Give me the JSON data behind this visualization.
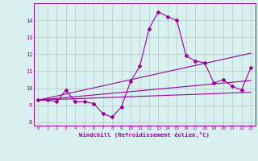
{
  "xlabel": "Windchill (Refroidissement éolien,°C)",
  "ylabel": "",
  "x_hours": [
    0,
    1,
    2,
    3,
    4,
    5,
    6,
    7,
    8,
    9,
    10,
    11,
    12,
    13,
    14,
    15,
    16,
    17,
    18,
    19,
    20,
    21,
    22,
    23
  ],
  "main_line": [
    9.3,
    9.3,
    9.2,
    9.9,
    9.2,
    9.2,
    9.1,
    8.5,
    8.3,
    8.9,
    10.4,
    11.3,
    13.5,
    14.5,
    14.2,
    14.0,
    11.9,
    11.6,
    11.5,
    10.3,
    10.5,
    10.1,
    9.9,
    11.2
  ],
  "line1": [
    9.3,
    9.32,
    9.34,
    9.36,
    9.38,
    9.4,
    9.42,
    9.44,
    9.46,
    9.48,
    9.5,
    9.52,
    9.54,
    9.56,
    9.58,
    9.6,
    9.62,
    9.64,
    9.66,
    9.68,
    9.7,
    9.72,
    9.74,
    9.76
  ],
  "line2": [
    9.3,
    9.35,
    9.4,
    9.45,
    9.5,
    9.55,
    9.6,
    9.65,
    9.7,
    9.75,
    9.8,
    9.85,
    9.9,
    9.95,
    10.0,
    10.05,
    10.1,
    10.15,
    10.2,
    10.25,
    10.3,
    10.35,
    10.4,
    10.45
  ],
  "line3": [
    9.3,
    9.42,
    9.54,
    9.66,
    9.78,
    9.9,
    10.02,
    10.14,
    10.26,
    10.38,
    10.5,
    10.62,
    10.74,
    10.86,
    10.98,
    11.1,
    11.22,
    11.34,
    11.46,
    11.58,
    11.7,
    11.82,
    11.94,
    12.06
  ],
  "line_color": "#990099",
  "bg_color": "#d8f0f0",
  "grid_color": "#b8d0d0",
  "ylim": [
    7.8,
    15.0
  ],
  "yticks": [
    8,
    9,
    10,
    11,
    12,
    13,
    14
  ],
  "xlim": [
    -0.5,
    23.5
  ]
}
